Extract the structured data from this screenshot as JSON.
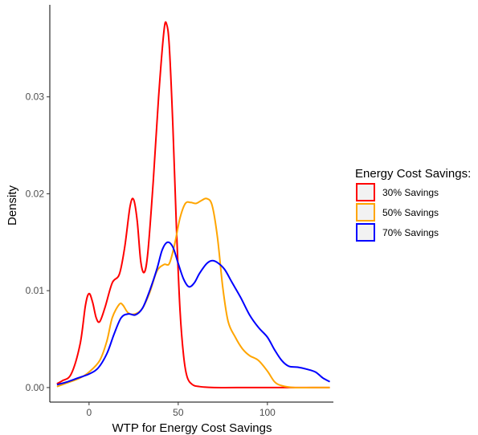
{
  "chart_data": {
    "type": "line",
    "xlabel": "WTP for Energy Cost Savings",
    "ylabel": "Density",
    "xlim": [
      -22,
      137
    ],
    "ylim": [
      -0.0015,
      0.0395
    ],
    "x_ticks": [
      0,
      50,
      100
    ],
    "x_tick_labels": [
      "0",
      "50",
      "100"
    ],
    "y_ticks": [
      0.0,
      0.01,
      0.02,
      0.03
    ],
    "y_tick_labels": [
      "0.00",
      "0.01",
      "0.02",
      "0.03"
    ],
    "grid": false,
    "legend": {
      "title": "Energy Cost Savings:",
      "placement": "right",
      "entries": [
        "30% Savings",
        "50% Savings",
        "70% Savings"
      ]
    },
    "series": [
      {
        "name": "30% Savings",
        "color": "#ff0000",
        "points": [
          [
            -18,
            0.0004
          ],
          [
            -15,
            0.0007
          ],
          [
            -10,
            0.0014
          ],
          [
            -5,
            0.0045
          ],
          [
            -2,
            0.0085
          ],
          [
            0,
            0.0097
          ],
          [
            2,
            0.0088
          ],
          [
            4,
            0.0072
          ],
          [
            6,
            0.0068
          ],
          [
            9,
            0.0083
          ],
          [
            13,
            0.0108
          ],
          [
            17,
            0.0117
          ],
          [
            20,
            0.0145
          ],
          [
            23,
            0.0187
          ],
          [
            25,
            0.0194
          ],
          [
            27,
            0.0172
          ],
          [
            29,
            0.013
          ],
          [
            31,
            0.0119
          ],
          [
            33,
            0.014
          ],
          [
            36,
            0.0213
          ],
          [
            39,
            0.03
          ],
          [
            42,
            0.0368
          ],
          [
            43.5,
            0.0375
          ],
          [
            45,
            0.0352
          ],
          [
            47,
            0.027
          ],
          [
            49,
            0.0165
          ],
          [
            51,
            0.008
          ],
          [
            53,
            0.0033
          ],
          [
            55,
            0.0011
          ],
          [
            58,
            0.0003
          ],
          [
            62,
            0.0001
          ],
          [
            70,
            0.0
          ],
          [
            90,
            0.0
          ],
          [
            110,
            0.0
          ],
          [
            135,
            0.0
          ]
        ]
      },
      {
        "name": "50% Savings",
        "color": "#ffa500",
        "points": [
          [
            -18,
            0.0001
          ],
          [
            -12,
            0.0005
          ],
          [
            -5,
            0.001
          ],
          [
            0,
            0.0016
          ],
          [
            6,
            0.0028
          ],
          [
            10,
            0.0048
          ],
          [
            13,
            0.0072
          ],
          [
            17,
            0.0086
          ],
          [
            19,
            0.0085
          ],
          [
            22,
            0.0077
          ],
          [
            26,
            0.0076
          ],
          [
            30,
            0.0082
          ],
          [
            34,
            0.0098
          ],
          [
            38,
            0.012
          ],
          [
            42,
            0.0127
          ],
          [
            45,
            0.0128
          ],
          [
            48,
            0.0148
          ],
          [
            51,
            0.0175
          ],
          [
            54,
            0.019
          ],
          [
            57,
            0.0191
          ],
          [
            60,
            0.019
          ],
          [
            63,
            0.0193
          ],
          [
            66,
            0.0195
          ],
          [
            69,
            0.0188
          ],
          [
            72,
            0.0155
          ],
          [
            75,
            0.0103
          ],
          [
            78,
            0.0068
          ],
          [
            82,
            0.0052
          ],
          [
            86,
            0.004
          ],
          [
            90,
            0.0033
          ],
          [
            95,
            0.0028
          ],
          [
            100,
            0.0017
          ],
          [
            104,
            0.0006
          ],
          [
            108,
            0.0002
          ],
          [
            115,
            0.0
          ],
          [
            125,
            0.0
          ],
          [
            135,
            0.0
          ]
        ]
      },
      {
        "name": "70% Savings",
        "color": "#0000ff",
        "points": [
          [
            -18,
            0.0003
          ],
          [
            -12,
            0.0006
          ],
          [
            -6,
            0.001
          ],
          [
            0,
            0.0014
          ],
          [
            5,
            0.002
          ],
          [
            10,
            0.0035
          ],
          [
            14,
            0.0055
          ],
          [
            18,
            0.0072
          ],
          [
            22,
            0.0076
          ],
          [
            26,
            0.0075
          ],
          [
            30,
            0.0082
          ],
          [
            34,
            0.01
          ],
          [
            38,
            0.0122
          ],
          [
            41,
            0.0142
          ],
          [
            44,
            0.015
          ],
          [
            47,
            0.0145
          ],
          [
            50,
            0.0128
          ],
          [
            53,
            0.0112
          ],
          [
            56,
            0.0104
          ],
          [
            59,
            0.0108
          ],
          [
            62,
            0.0118
          ],
          [
            66,
            0.0128
          ],
          [
            69,
            0.0131
          ],
          [
            72,
            0.0129
          ],
          [
            76,
            0.0122
          ],
          [
            80,
            0.0109
          ],
          [
            85,
            0.0093
          ],
          [
            90,
            0.0075
          ],
          [
            95,
            0.0062
          ],
          [
            100,
            0.0052
          ],
          [
            104,
            0.0039
          ],
          [
            108,
            0.0028
          ],
          [
            112,
            0.0022
          ],
          [
            117,
            0.0021
          ],
          [
            122,
            0.0019
          ],
          [
            127,
            0.0016
          ],
          [
            131,
            0.001
          ],
          [
            135,
            0.0006
          ]
        ]
      }
    ]
  }
}
